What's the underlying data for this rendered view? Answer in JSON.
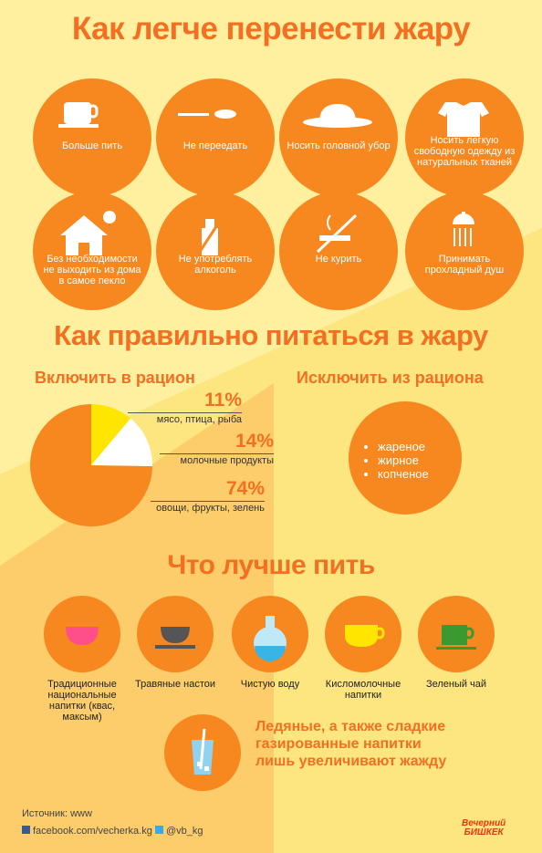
{
  "header": {
    "title": "Как легче перенести жару"
  },
  "tips": [
    "Больше пить",
    "Не переедать",
    "Носить головной убор",
    "Носить легкую свободную одежду из натуральных тканей",
    "Без необходимости не выходить из дома в самое пекло",
    "Не употреблять алкоголь",
    "Не курить",
    "Принимать прохладный душ"
  ],
  "diet": {
    "title": "Как правильно питаться в жару",
    "include_title": "Включить в рацион",
    "exclude_title": "Исключить из рациона",
    "exclude_items": [
      "жареное",
      "жирное",
      "копченое"
    ]
  },
  "chart_data": {
    "type": "pie",
    "categories": [
      "мясо, птица, рыба",
      "молочные продукты",
      "овощи, фрукты, зелень"
    ],
    "values": [
      11,
      14,
      74
    ],
    "value_labels": [
      "11%",
      "14%",
      "74%"
    ],
    "colors": [
      "#ffe600",
      "#ffffff",
      "#f7871f"
    ]
  },
  "drinks": {
    "title": "Что лучше пить",
    "items": [
      "Традиционные национальные напитки (квас, максым)",
      "Травяные настои",
      "Чистую воду",
      "Кисломолочные напитки",
      "Зеленый чай"
    ],
    "warning": "Ледяные, а также сладкие газированные напитки лишь увеличивают жажду"
  },
  "footer": {
    "source": "Источник: www",
    "facebook": "facebook.com/vecherka.kg",
    "twitter": "@vb_kg",
    "logo_top": "Вечерний",
    "logo_bottom": "БИШКЕК"
  }
}
